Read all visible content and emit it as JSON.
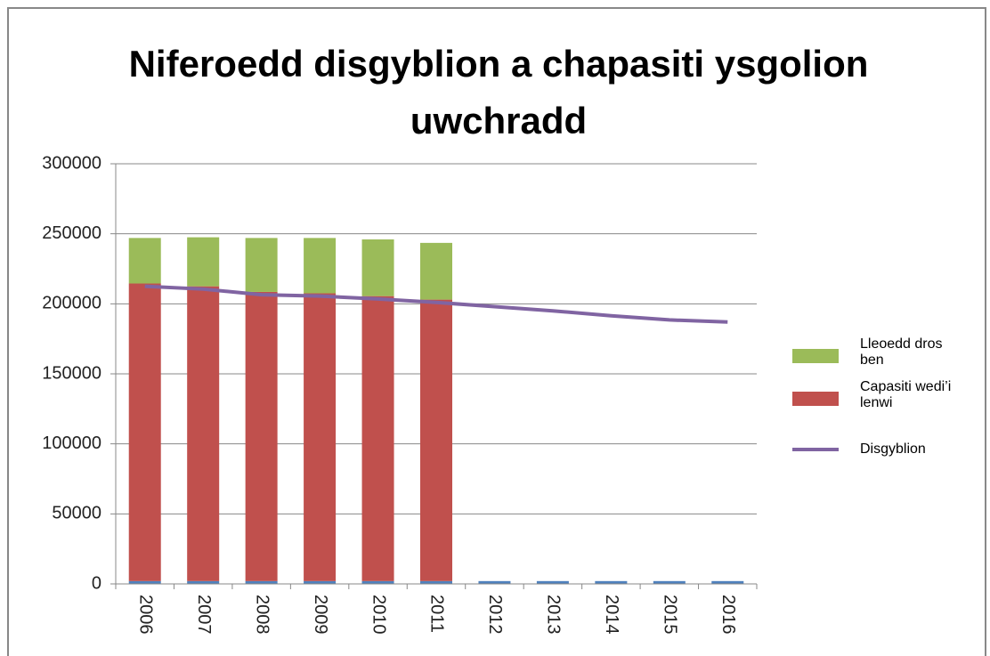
{
  "chart_data": {
    "type": "bar",
    "stacked": true,
    "title": "Niferoedd disgyblion a chapasiti ysgolion uwchradd",
    "categories": [
      "2006",
      "2007",
      "2008",
      "2009",
      "2010",
      "2011",
      "2012",
      "2013",
      "2014",
      "2015",
      "2016"
    ],
    "series": [
      {
        "color": "#4f81bd",
        "values": [
          2006,
          2007,
          2008,
          2009,
          2010,
          2011,
          2012,
          2013,
          2014,
          2015,
          2016
        ]
      },
      {
        "name": "Capasiti wedi’i lenwi",
        "color": "#c0504d",
        "values": [
          212500,
          210500,
          206500,
          205500,
          203500,
          201000,
          null,
          null,
          null,
          null,
          null
        ]
      },
      {
        "name": "Lleoedd dros ben",
        "color": "#9bbb59",
        "values": [
          32500,
          35000,
          38500,
          39500,
          40500,
          40500,
          null,
          null,
          null,
          null,
          null
        ]
      },
      {
        "name": "Disgyblion",
        "color": "#8064a2",
        "type": "line",
        "values": [
          212500,
          210500,
          206500,
          205500,
          203500,
          201000,
          198000,
          195000,
          191500,
          188500,
          187000
        ]
      }
    ],
    "legend_order": [
      2,
      1,
      3
    ],
    "legend": "right",
    "ylim": [
      0,
      300000
    ],
    "yticks": [
      0,
      50000,
      100000,
      150000,
      200000,
      250000,
      300000
    ],
    "grid": true
  }
}
